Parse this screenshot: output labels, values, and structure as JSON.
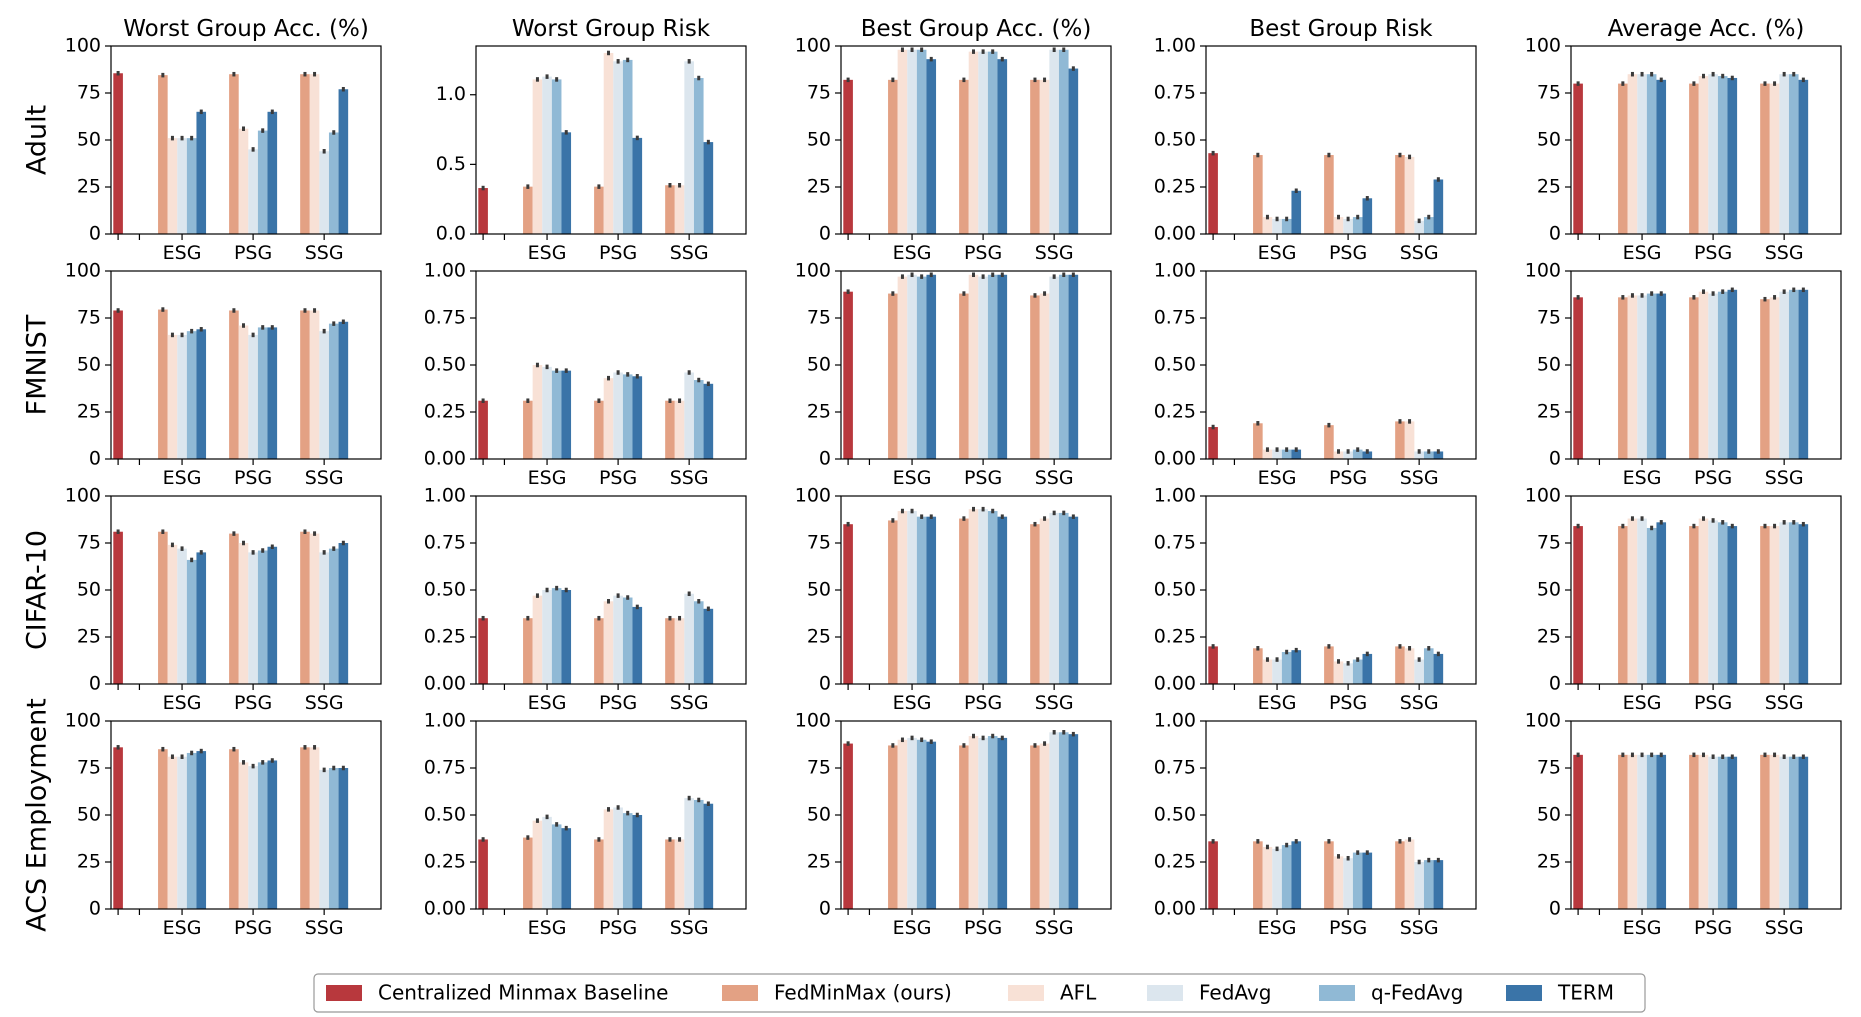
{
  "chart_data": {
    "type": "bar",
    "layout": "grid 4 rows x 5 columns",
    "columns": [
      {
        "title": "Worst Group Acc. (%)",
        "ylim": [
          0,
          100
        ],
        "yticks": [
          0,
          25,
          50,
          75,
          100
        ],
        "tick_labels": [
          "0",
          "25",
          "50",
          "75",
          "100"
        ]
      },
      {
        "title": "Worst Group Risk",
        "ylim": [
          0,
          1.0
        ],
        "yticks": [
          0,
          0.25,
          0.5,
          0.75,
          1.0
        ],
        "tick_labels": [
          "0.00",
          "0.25",
          "0.50",
          "0.75",
          "1.00"
        ]
      },
      {
        "title": "Best Group Acc. (%)",
        "ylim": [
          0,
          100
        ],
        "yticks": [
          0,
          25,
          50,
          75,
          100
        ],
        "tick_labels": [
          "0",
          "25",
          "50",
          "75",
          "100"
        ]
      },
      {
        "title": "Best Group Risk",
        "ylim": [
          0,
          1.0
        ],
        "yticks": [
          0,
          0.25,
          0.5,
          0.75,
          1.0
        ],
        "tick_labels": [
          "0.00",
          "0.25",
          "0.50",
          "0.75",
          "1.00"
        ]
      },
      {
        "title": "Average Acc. (%)",
        "ylim": [
          0,
          100
        ],
        "yticks": [
          0,
          25,
          50,
          75,
          100
        ],
        "tick_labels": [
          "0",
          "25",
          "50",
          "75",
          "100"
        ]
      }
    ],
    "adult_worst_risk_axis": {
      "ylim": [
        0,
        1.35
      ],
      "yticks": [
        0,
        0.5,
        1.0
      ],
      "tick_labels": [
        "0.0",
        "0.5",
        "1.0"
      ]
    },
    "rows": [
      "Adult",
      "FMNIST",
      "CIFAR-10",
      "ACS Employment"
    ],
    "categories": [
      "",
      "ESG",
      "PSG",
      "SSG"
    ],
    "series_names": [
      "Centralized Minmax Baseline",
      "FedMinMax (ours)",
      "AFL",
      "FedAvg",
      "q-FedAvg",
      "TERM"
    ],
    "colors": [
      "#b8383d",
      "#e3a184",
      "#f8e1d6",
      "#dce6ee",
      "#90b9d5",
      "#3a74a8"
    ],
    "error_bar_color": "#3a3a3a",
    "legend_position": "bottom-center",
    "grid": false,
    "values": [
      [
        [
          [
            85.5
          ],
          [
            84.5,
            51,
            51,
            51,
            65
          ],
          [
            85,
            56,
            45,
            55,
            65
          ],
          [
            85,
            85,
            44,
            54,
            77
          ]
        ],
        [
          [
            0.33
          ],
          [
            0.34,
            1.11,
            1.13,
            1.11,
            0.73
          ],
          [
            0.34,
            1.3,
            1.24,
            1.25,
            0.69
          ],
          [
            0.35,
            0.35,
            1.24,
            1.12,
            0.66
          ]
        ],
        [
          [
            82
          ],
          [
            82,
            98,
            98,
            98,
            93
          ],
          [
            82,
            97,
            97,
            97,
            93
          ],
          [
            82,
            82,
            98,
            98,
            88
          ]
        ],
        [
          [
            0.43
          ],
          [
            0.42,
            0.09,
            0.08,
            0.08,
            0.23
          ],
          [
            0.42,
            0.09,
            0.08,
            0.09,
            0.19
          ],
          [
            0.42,
            0.41,
            0.07,
            0.09,
            0.29
          ]
        ],
        [
          [
            80
          ],
          [
            80,
            85,
            85,
            85,
            82
          ],
          [
            80,
            84,
            85,
            84,
            83
          ],
          [
            80,
            80,
            85,
            85,
            82
          ]
        ]
      ],
      [
        [
          [
            79
          ],
          [
            79.5,
            66,
            66,
            68,
            69
          ],
          [
            79,
            71,
            66,
            70,
            70
          ],
          [
            79,
            79,
            68,
            72,
            73
          ]
        ],
        [
          [
            0.31
          ],
          [
            0.31,
            0.5,
            0.49,
            0.47,
            0.47
          ],
          [
            0.31,
            0.43,
            0.46,
            0.45,
            0.44
          ],
          [
            0.31,
            0.31,
            0.46,
            0.42,
            0.4
          ]
        ],
        [
          [
            89
          ],
          [
            88,
            97,
            98,
            97,
            98
          ],
          [
            88,
            98,
            97,
            98,
            98
          ],
          [
            87,
            88,
            97,
            98,
            98
          ]
        ],
        [
          [
            0.17
          ],
          [
            0.19,
            0.05,
            0.05,
            0.05,
            0.05
          ],
          [
            0.18,
            0.04,
            0.04,
            0.05,
            0.04
          ],
          [
            0.2,
            0.2,
            0.04,
            0.04,
            0.04
          ]
        ],
        [
          [
            86
          ],
          [
            86,
            87,
            87,
            88,
            88
          ],
          [
            86,
            89,
            88,
            89,
            90
          ],
          [
            85,
            86,
            89,
            90,
            90
          ]
        ]
      ],
      [
        [
          [
            81
          ],
          [
            81,
            74,
            72,
            66,
            70
          ],
          [
            80,
            75,
            70,
            71,
            73
          ],
          [
            81,
            80,
            70,
            72,
            75
          ]
        ],
        [
          [
            0.35
          ],
          [
            0.35,
            0.47,
            0.5,
            0.51,
            0.5
          ],
          [
            0.35,
            0.44,
            0.47,
            0.46,
            0.41
          ],
          [
            0.35,
            0.35,
            0.48,
            0.44,
            0.4
          ]
        ],
        [
          [
            85
          ],
          [
            87,
            92,
            92,
            89,
            89
          ],
          [
            88,
            93,
            93,
            92,
            89
          ],
          [
            85,
            88,
            91,
            91,
            89
          ]
        ],
        [
          [
            0.2
          ],
          [
            0.19,
            0.13,
            0.13,
            0.17,
            0.18
          ],
          [
            0.2,
            0.12,
            0.11,
            0.13,
            0.16
          ],
          [
            0.2,
            0.19,
            0.13,
            0.19,
            0.16
          ]
        ],
        [
          [
            84
          ],
          [
            84,
            88,
            88,
            83,
            86
          ],
          [
            84,
            88,
            87,
            86,
            84
          ],
          [
            84,
            84,
            86,
            86,
            85
          ]
        ]
      ],
      [
        [
          [
            86
          ],
          [
            85,
            81,
            81,
            83,
            84
          ],
          [
            85,
            78,
            76,
            78,
            79
          ],
          [
            86,
            86,
            74,
            75,
            75
          ]
        ],
        [
          [
            0.37
          ],
          [
            0.38,
            0.47,
            0.49,
            0.45,
            0.43
          ],
          [
            0.37,
            0.53,
            0.54,
            0.51,
            0.5
          ],
          [
            0.37,
            0.37,
            0.59,
            0.58,
            0.56
          ]
        ],
        [
          [
            88
          ],
          [
            87,
            90,
            91,
            90,
            89
          ],
          [
            87,
            92,
            91,
            92,
            91
          ],
          [
            87,
            88,
            94,
            94,
            93
          ]
        ],
        [
          [
            0.36
          ],
          [
            0.36,
            0.33,
            0.32,
            0.34,
            0.36
          ],
          [
            0.36,
            0.28,
            0.27,
            0.3,
            0.3
          ],
          [
            0.36,
            0.37,
            0.25,
            0.26,
            0.26
          ]
        ],
        [
          [
            82
          ],
          [
            82,
            82,
            82,
            82,
            82
          ],
          [
            82,
            82,
            81,
            81,
            81
          ],
          [
            82,
            82,
            81,
            81,
            81
          ]
        ]
      ]
    ]
  }
}
